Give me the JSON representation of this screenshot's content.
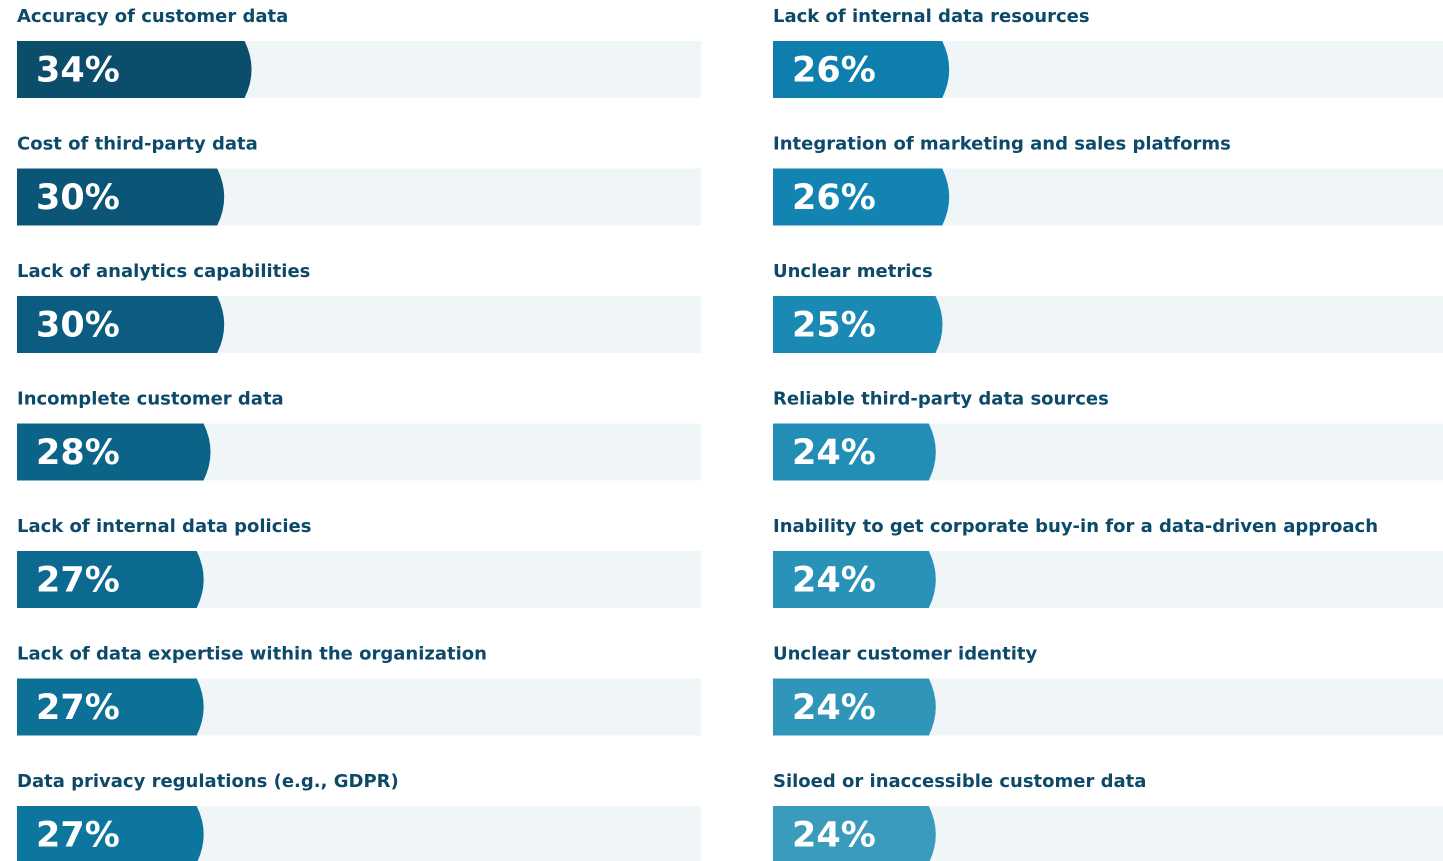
{
  "chart_data": {
    "type": "bar",
    "categories": [
      "Accuracy of customer data",
      "Cost of third-party data",
      "Lack of analytics capabilities",
      "Incomplete customer data",
      "Lack of internal data policies",
      "Lack of data expertise within the organization",
      "Data privacy regulations (e.g., GDPR)",
      "Lack of internal data resources",
      "Integration of marketing and sales platforms",
      "Unclear metrics",
      "Reliable third-party data sources",
      "Inability to get corporate buy-in for a data-driven approach",
      "Unclear customer identity",
      "Siloed or inaccessible customer data"
    ],
    "values": [
      34,
      30,
      30,
      28,
      27,
      27,
      27,
      26,
      26,
      25,
      24,
      24,
      24,
      24
    ],
    "value_labels": [
      "34%",
      "30%",
      "30%",
      "28%",
      "27%",
      "27%",
      "27%",
      "26%",
      "26%",
      "25%",
      "24%",
      "24%",
      "24%",
      "24%"
    ],
    "colors": [
      "#0b4e6b",
      "#0b5676",
      "#0b5c80",
      "#0c6388",
      "#0c6a90",
      "#0d7097",
      "#0d769f",
      "#0e7fad",
      "#1384b1",
      "#1a89b3",
      "#228eb6",
      "#2992b8",
      "#2f96ba",
      "#3a9bbc"
    ],
    "xlim": [
      0,
      100
    ]
  }
}
